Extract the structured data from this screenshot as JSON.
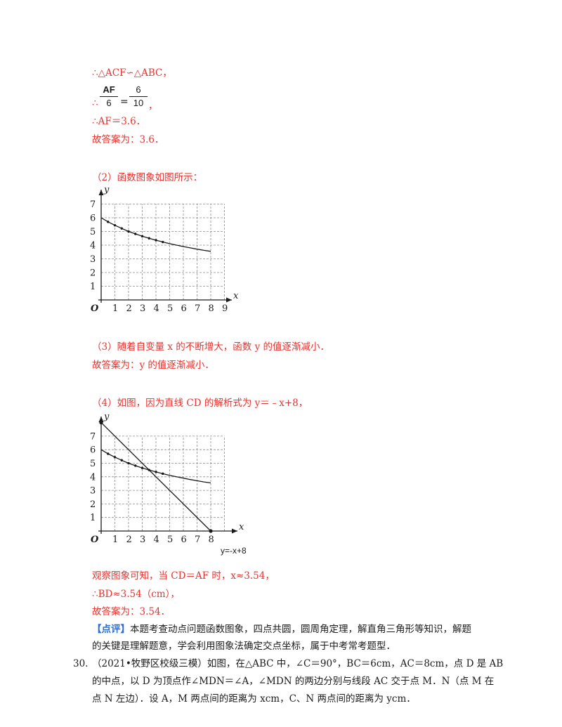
{
  "part1": {
    "line1": "∴△ACF∽△ABC，",
    "frac_left_num": "AF",
    "frac_left_den": "6",
    "frac_right_num": "6",
    "frac_right_den": "10",
    "frac_prefix": "∴",
    "frac_suffix": "，",
    "line3": "∴AF＝3.6．",
    "line4": "故答案为：3.6．"
  },
  "part2": {
    "text": "（2）函数图象如图所示："
  },
  "part3": {
    "line1": "（3）随着自变量 x 的不断增大，函数 y 的值逐渐减小．",
    "line2": "故答案为：y 的值逐渐减小．"
  },
  "part4": {
    "line1": "（4）如图，因为直线 CD 的解析式为 y＝﹣x+8，",
    "obs": "观察图象可知，当 CD＝AF 时，x≈3.54，",
    "bd": "∴BD≈3.54（cm），",
    "ans": "故答案为：3.54．"
  },
  "comment": {
    "tag": "【点评】",
    "line1": "本题考查动点问题函数图象，四点共圆，圆周角定理，解直角三角形等知识，解题",
    "line2": "的关键是理解题意，学会利用图象法确定交点坐标，属于中考常考题型．"
  },
  "q30": {
    "number": "30.",
    "line1": "（2021•牧野区校级三模）如图，在△ABC 中，∠C＝90°，BC＝6cm，AC＝8cm，点 D 是 AB",
    "line2": "的中点，以 D 为顶点作∠MDN＝∠A，∠MDN 的两边分别与线段 AC 交于点 M．N（点 M 在",
    "line3": "点 N 左边）．设 A，M 两点间的距离为 xcm，C、N 两点间的距离为 ycm．"
  },
  "graph1": {
    "x_ticks": [
      "1",
      "2",
      "3",
      "4",
      "5",
      "6",
      "7",
      "8",
      "9"
    ],
    "y_ticks": [
      "1",
      "2",
      "3",
      "4",
      "5",
      "6",
      "7"
    ],
    "origin": "O",
    "x_axis": "x",
    "y_axis": "y"
  },
  "graph2": {
    "x_ticks": [
      "1",
      "2",
      "3",
      "4",
      "5",
      "6",
      "7",
      "8"
    ],
    "y_ticks": [
      "1",
      "2",
      "3",
      "4",
      "5",
      "6",
      "7"
    ],
    "origin": "O",
    "x_axis": "x",
    "y_axis": "y",
    "line_label": "y=-x+8"
  },
  "chart_data": [
    {
      "type": "line",
      "x": [
        0,
        0.5,
        1,
        1.5,
        2,
        2.5,
        3,
        3.5,
        4,
        4.5,
        5,
        5.5,
        6,
        6.5,
        7,
        7.5,
        8
      ],
      "series": [
        {
          "values": [
            6.0,
            5.7,
            5.45,
            5.22,
            5.0,
            4.82,
            4.65,
            4.5,
            4.36,
            4.23,
            4.11,
            4.0,
            3.9,
            3.8,
            3.71,
            3.62,
            3.55
          ]
        }
      ],
      "xlim": [
        0,
        9
      ],
      "ylim": [
        0,
        7
      ],
      "grid": true
    },
    {
      "type": "line",
      "x": [
        0,
        0.5,
        1,
        1.5,
        2,
        2.5,
        3,
        3.5,
        4,
        4.5,
        5,
        5.5,
        6,
        6.5,
        7,
        7.5,
        8
      ],
      "series": [
        {
          "values": [
            6.0,
            5.7,
            5.45,
            5.22,
            5.0,
            4.82,
            4.65,
            4.5,
            4.36,
            4.23,
            4.11,
            4.0,
            3.9,
            3.8,
            3.71,
            3.62,
            3.55
          ]
        },
        {
          "name": "y=-x+8",
          "values": [
            8,
            7.5,
            7,
            6.5,
            6,
            5.5,
            5,
            4.5,
            4,
            3.5,
            3,
            2.5,
            2,
            1.5,
            1,
            0.5,
            0
          ]
        }
      ],
      "xlim": [
        0,
        8
      ],
      "ylim": [
        0,
        8
      ],
      "grid": true
    }
  ]
}
